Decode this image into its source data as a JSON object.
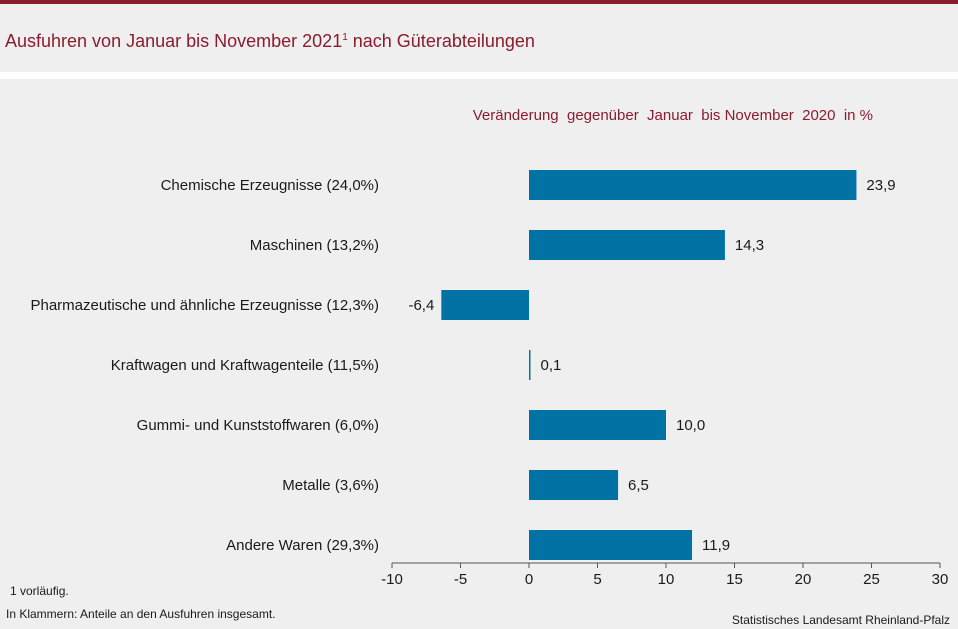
{
  "title": {
    "main": "Ausfuhren von Januar bis November 2021",
    "footnote_mark": "1",
    "rest": " nach Güterabteilungen"
  },
  "chart_data": {
    "type": "bar",
    "orientation": "horizontal",
    "subtitle": "Veränderung  gegenüber  Januar  bis November  2020  in %",
    "categories": [
      "Chemische Erzeugnisse (24,0%)",
      "Maschinen (13,2%)",
      "Pharmazeutische und ähnliche Erzeugnisse (12,3%)",
      "Kraftwagen und Kraftwagenteile (11,5%)",
      "Gummi- und Kunststoffwaren (6,0%)",
      "Metalle (3,6%)",
      "Andere Waren (29,3%)"
    ],
    "values": [
      23.9,
      14.3,
      -6.4,
      0.1,
      10.0,
      6.5,
      11.9
    ],
    "value_labels": [
      "23,9",
      "14,3",
      "-6,4",
      "0,1",
      "10,0",
      "6,5",
      "11,9"
    ],
    "xlim": [
      -10,
      30
    ],
    "xticks": [
      -10,
      -5,
      0,
      5,
      10,
      15,
      20,
      25,
      30
    ],
    "xtick_labels": [
      "-10",
      "-5",
      "0",
      "5",
      "10",
      "15",
      "20",
      "25",
      "30"
    ],
    "bar_color": "#0072a3"
  },
  "footnotes": {
    "note1": "1 vorläufig.",
    "note2": "In Klammern:  Anteile an den Ausfuhren  insgesamt."
  },
  "source": "Statistisches Landesamt  Rheinland-Pfalz",
  "colors": {
    "accent": "#8a1c2f",
    "background": "#efefef",
    "bar": "#0072a3"
  }
}
